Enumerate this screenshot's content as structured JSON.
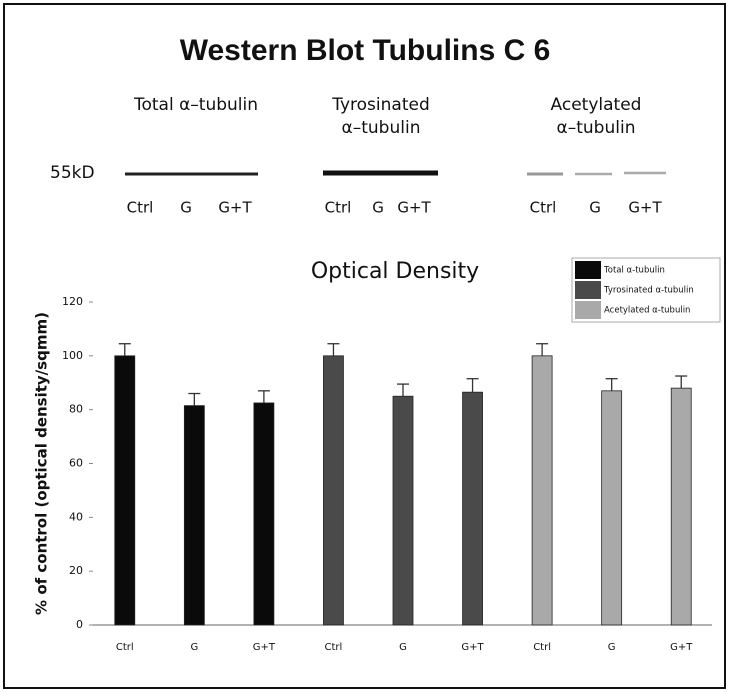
{
  "title": "Western Blot Tubulins C 6",
  "blot": {
    "marker": "55kD",
    "panels": [
      {
        "label": [
          "Total α–tubulin"
        ],
        "lanes": [
          "Ctrl",
          "G",
          "G+T"
        ]
      },
      {
        "label": [
          "Tyrosinated",
          "α–tubulin"
        ],
        "lanes": [
          "Ctrl",
          "G",
          "G+T"
        ]
      },
      {
        "label": [
          "Acetylated",
          "α–tubulin"
        ],
        "lanes": [
          "Ctrl",
          "G",
          "G+T"
        ]
      }
    ]
  },
  "chart_data": {
    "type": "bar",
    "title": "Optical Density",
    "y_label": "% of control (optical density/sqmm)",
    "categories": [
      "Ctrl",
      "G",
      "G+T",
      "Ctrl",
      "G",
      "G+T",
      "Ctrl",
      "G",
      "G+T"
    ],
    "series": [
      {
        "name": "Total α-tubulin",
        "color": "#0a0a0a",
        "values": [
          100,
          81.5,
          82.5,
          null,
          null,
          null,
          null,
          null,
          null
        ],
        "errors": [
          4.5,
          4.5,
          4.5,
          null,
          null,
          null,
          null,
          null,
          null
        ]
      },
      {
        "name": "Tyrosinated α-tubulin",
        "color": "#4a4a4a",
        "values": [
          null,
          null,
          null,
          100,
          85,
          86.5,
          null,
          null,
          null
        ],
        "errors": [
          null,
          null,
          null,
          4.5,
          4.5,
          5,
          null,
          null,
          null
        ]
      },
      {
        "name": "Acetylated α-tubulin",
        "color": "#a9a9a9",
        "values": [
          null,
          null,
          null,
          null,
          null,
          null,
          100,
          87,
          88
        ],
        "errors": [
          null,
          null,
          null,
          null,
          null,
          null,
          4.5,
          4.5,
          4.5
        ]
      }
    ],
    "ylim": [
      0,
      120
    ],
    "yticks": [
      0,
      20,
      40,
      60,
      80,
      100,
      120
    ],
    "grid": false,
    "legend": "top-right"
  }
}
